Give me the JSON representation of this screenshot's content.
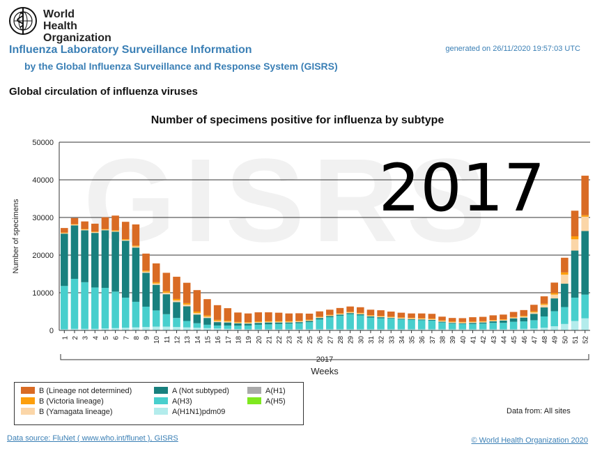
{
  "header": {
    "org_name_line1": "World Health",
    "org_name_line2": "Organization",
    "title": "Influenza Laboratory Surveillance Information",
    "subtitle": "by the Global Influenza Surveillance and Response System (GISRS)",
    "generated": "generated on 26/11/2020 19:57:03 UTC"
  },
  "section_title": "Global circulation of influenza viruses",
  "watermark_text": "GISRS",
  "footer": {
    "data_from": "Data from: All sites",
    "source": "Data source: FluNet ( www.who.int/flunet ),  GISRS",
    "copyright": "© World Health Organization 2020"
  },
  "chart_data": {
    "type": "bar",
    "stacked": true,
    "title": "Number of specimens positive for influenza by subtype",
    "overlay_label": "2017",
    "xlabel": "Weeks",
    "x_group_label": "2017",
    "ylabel": "Number of specimens",
    "ylim": [
      0,
      50000
    ],
    "yticks": [
      0,
      10000,
      20000,
      30000,
      40000,
      50000
    ],
    "grid": true,
    "categories": [
      "1",
      "2",
      "3",
      "4",
      "5",
      "6",
      "7",
      "8",
      "9",
      "10",
      "11",
      "12",
      "13",
      "14",
      "15",
      "16",
      "17",
      "18",
      "19",
      "20",
      "21",
      "22",
      "23",
      "24",
      "25",
      "26",
      "27",
      "28",
      "29",
      "30",
      "31",
      "32",
      "33",
      "34",
      "35",
      "36",
      "37",
      "38",
      "39",
      "40",
      "41",
      "42",
      "43",
      "44",
      "45",
      "46",
      "47",
      "48",
      "49",
      "50",
      "51",
      "52"
    ],
    "series": [
      {
        "name": "A(H1N1)pdm09",
        "color": "#b3ecec",
        "values": [
          300,
          400,
          400,
          400,
          500,
          600,
          700,
          800,
          900,
          1000,
          1000,
          900,
          800,
          700,
          600,
          500,
          400,
          350,
          300,
          300,
          300,
          300,
          300,
          300,
          300,
          300,
          300,
          300,
          300,
          300,
          300,
          300,
          300,
          300,
          300,
          300,
          300,
          300,
          300,
          300,
          300,
          300,
          300,
          300,
          300,
          400,
          500,
          700,
          1100,
          1700,
          2500,
          3200
        ]
      },
      {
        "name": "A(H3)",
        "color": "#48cfcd",
        "values": [
          11500,
          13300,
          12400,
          11000,
          10800,
          9700,
          8000,
          6800,
          5400,
          4300,
          3300,
          2400,
          1700,
          1200,
          900,
          800,
          900,
          900,
          1000,
          1200,
          1300,
          1400,
          1500,
          1600,
          1900,
          2600,
          3200,
          3600,
          4000,
          3700,
          3100,
          2900,
          2800,
          2600,
          2500,
          2400,
          2300,
          1800,
          1500,
          1400,
          1400,
          1500,
          1700,
          1700,
          2000,
          2000,
          2200,
          3000,
          4000,
          4500,
          6200,
          6300
        ]
      },
      {
        "name": "A(Not subtyped)",
        "color": "#18807e",
        "values": [
          13900,
          14200,
          13800,
          14500,
          15300,
          15900,
          15100,
          14400,
          9000,
          6800,
          5300,
          4200,
          3900,
          2300,
          1800,
          900,
          800,
          600,
          500,
          500,
          500,
          400,
          300,
          300,
          300,
          400,
          300,
          300,
          300,
          300,
          300,
          300,
          200,
          200,
          200,
          200,
          200,
          200,
          200,
          200,
          300,
          300,
          400,
          600,
          900,
          1000,
          1700,
          2400,
          3400,
          6200,
          12500,
          16900
        ]
      },
      {
        "name": "A(H1)",
        "color": "#aaaaaa",
        "values": [
          0,
          0,
          0,
          0,
          0,
          0,
          0,
          0,
          0,
          0,
          0,
          0,
          0,
          0,
          0,
          0,
          0,
          0,
          0,
          0,
          0,
          0,
          0,
          0,
          0,
          0,
          0,
          0,
          0,
          0,
          0,
          0,
          0,
          0,
          0,
          0,
          0,
          0,
          0,
          0,
          0,
          0,
          0,
          0,
          0,
          0,
          0,
          0,
          0,
          0,
          0,
          0
        ]
      },
      {
        "name": "A(H5)",
        "color": "#7fe81f",
        "values": [
          0,
          0,
          0,
          0,
          0,
          0,
          0,
          0,
          0,
          0,
          0,
          0,
          0,
          0,
          0,
          0,
          0,
          0,
          0,
          0,
          0,
          0,
          0,
          0,
          0,
          0,
          0,
          0,
          0,
          0,
          0,
          0,
          0,
          0,
          0,
          0,
          0,
          0,
          0,
          0,
          0,
          0,
          0,
          0,
          0,
          0,
          0,
          0,
          0,
          0,
          0,
          0
        ]
      },
      {
        "name": "B (Yamagata lineage)",
        "color": "#fbd6a8",
        "values": [
          150,
          200,
          200,
          200,
          200,
          200,
          250,
          300,
          300,
          350,
          400,
          450,
          450,
          400,
          350,
          300,
          250,
          200,
          200,
          200,
          200,
          200,
          200,
          200,
          200,
          200,
          200,
          200,
          200,
          200,
          200,
          200,
          200,
          200,
          200,
          200,
          200,
          200,
          200,
          200,
          200,
          200,
          200,
          200,
          200,
          300,
          400,
          700,
          1000,
          2400,
          3000,
          3800
        ]
      },
      {
        "name": "B (Victoria lineage)",
        "color": "#fd9f0c",
        "values": [
          150,
          150,
          150,
          150,
          150,
          200,
          200,
          250,
          300,
          350,
          400,
          400,
          400,
          400,
          350,
          300,
          250,
          200,
          200,
          200,
          200,
          200,
          200,
          150,
          150,
          150,
          150,
          150,
          150,
          150,
          150,
          150,
          150,
          150,
          150,
          150,
          150,
          150,
          150,
          150,
          150,
          150,
          150,
          150,
          150,
          200,
          250,
          300,
          400,
          600,
          800,
          400
        ]
      },
      {
        "name": "B (Lineage not determined)",
        "color": "#d96b24",
        "values": [
          1200,
          1600,
          2000,
          2100,
          3100,
          3900,
          4600,
          5600,
          4500,
          5000,
          4900,
          5900,
          5400,
          5700,
          4300,
          3900,
          3300,
          2500,
          2300,
          2400,
          2300,
          2200,
          2000,
          2000,
          1600,
          1400,
          1350,
          1400,
          1400,
          1500,
          1450,
          1500,
          1350,
          1250,
          1150,
          1250,
          1250,
          1000,
          950,
          1000,
          1150,
          1150,
          1250,
          1250,
          1350,
          1500,
          1750,
          1950,
          2800,
          3900,
          6800,
          10500
        ]
      }
    ],
    "legend": {
      "columns": [
        [
          "B (Lineage not determined)",
          "B (Victoria lineage)",
          "B (Yamagata lineage)"
        ],
        [
          "A (Not subtyped)",
          "A(H3)",
          "A(H1N1)pdm09"
        ],
        [
          "A(H1)",
          "A(H5)"
        ]
      ],
      "swatch_colors": {
        "B (Lineage not determined)": "#d96b24",
        "B (Victoria lineage)": "#fd9f0c",
        "B (Yamagata lineage)": "#fbd6a8",
        "A (Not subtyped)": "#18807e",
        "A(H3)": "#48cfcd",
        "A(H1N1)pdm09": "#b3ecec",
        "A(H1)": "#aaaaaa",
        "A(H5)": "#7fe81f"
      },
      "placement": "bottom-left"
    }
  }
}
